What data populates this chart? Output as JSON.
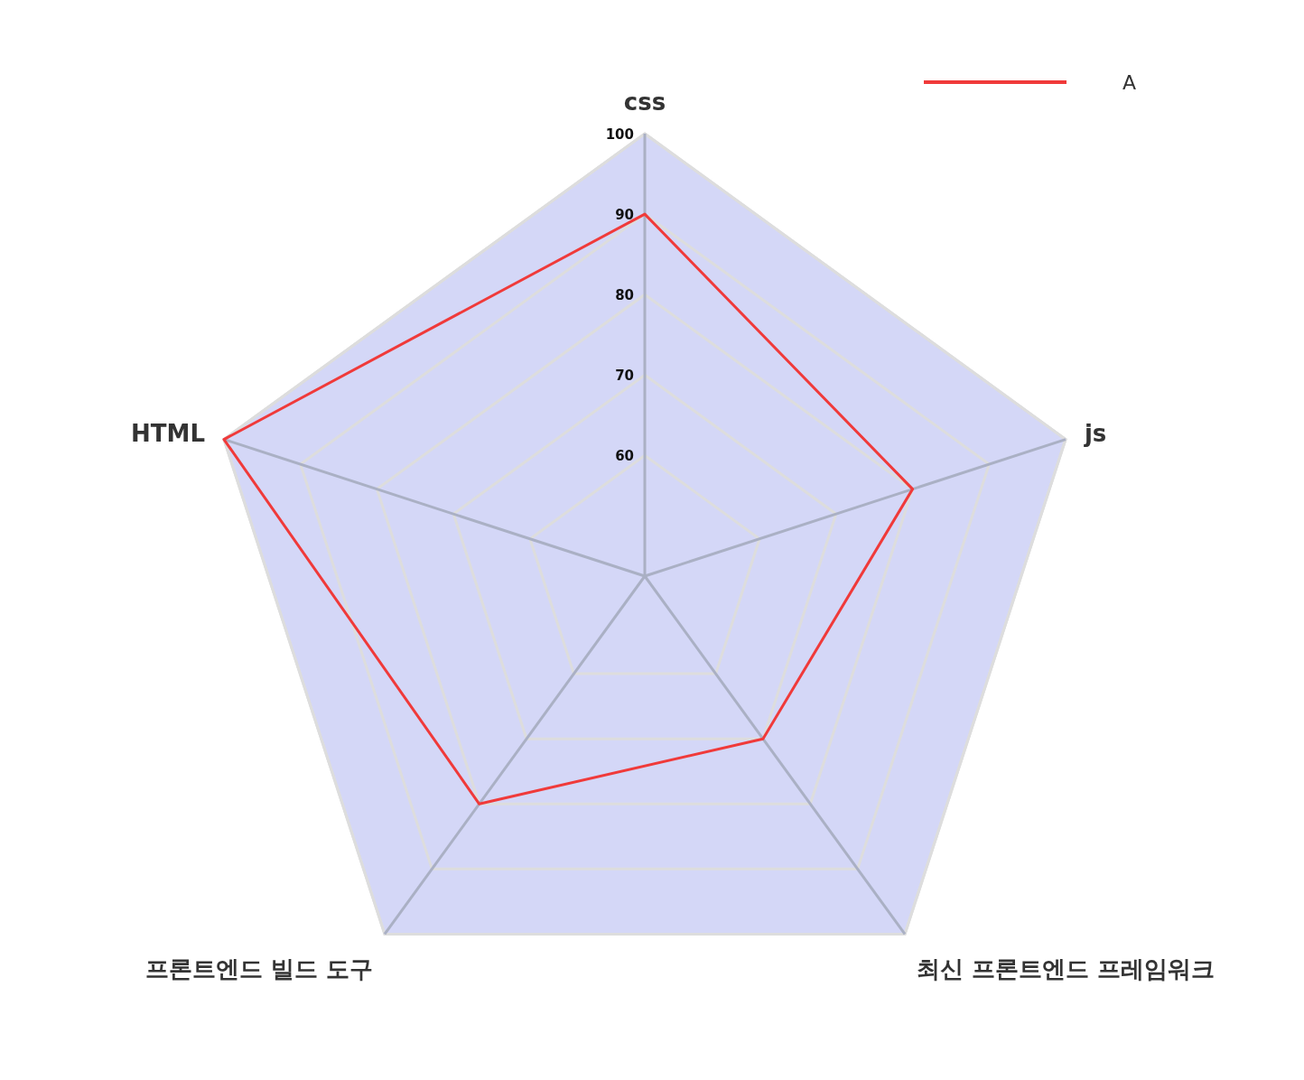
{
  "chart_data": {
    "type": "radar",
    "categories": [
      "css",
      "js",
      "최신 프론트엔드 프레임워크",
      "프론트엔드 빌드 도구",
      "HTML"
    ],
    "series": [
      {
        "name": "A",
        "color": "#f03a3a",
        "values": [
          90,
          80,
          70,
          80,
          100
        ]
      }
    ],
    "ylim": [
      45,
      100
    ],
    "yticks": [
      60,
      70,
      80,
      90,
      100
    ],
    "grid": true,
    "legend": "top right",
    "marker": "none",
    "line_style": "solid"
  }
}
